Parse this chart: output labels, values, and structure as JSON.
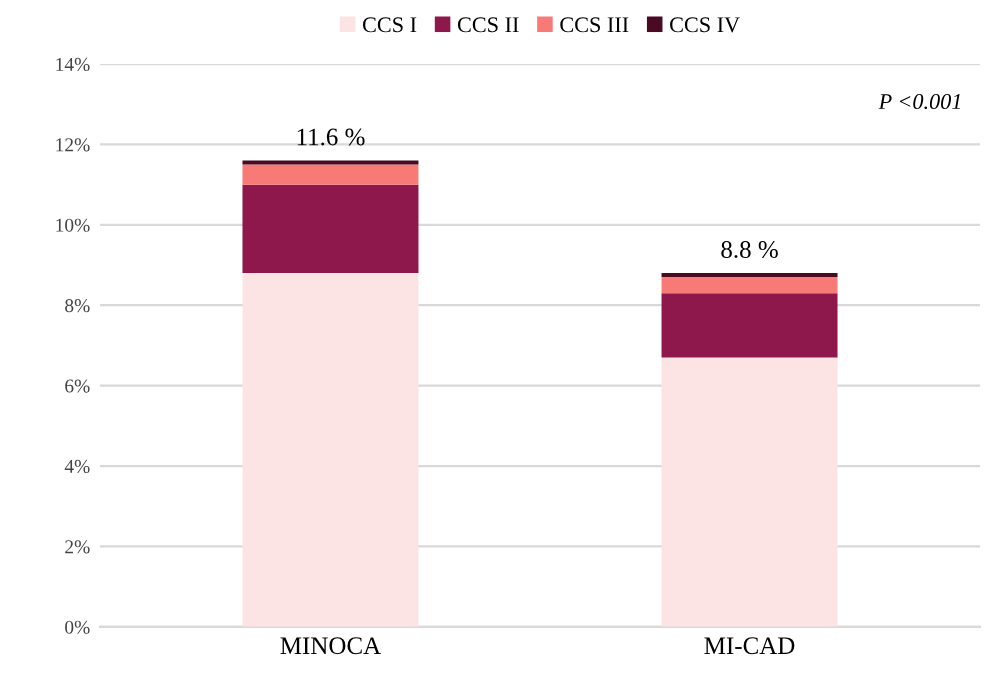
{
  "chart_data": {
    "type": "bar",
    "stacked": true,
    "categories": [
      "MINOCA",
      "MI-CAD"
    ],
    "series": [
      {
        "name": "CCS I",
        "color": "#fde4e4",
        "values": [
          8.8,
          6.7
        ]
      },
      {
        "name": "CCS II",
        "color": "#8e174b",
        "values": [
          2.2,
          1.6
        ]
      },
      {
        "name": "CCS III",
        "color": "#f87a76",
        "values": [
          0.5,
          0.4
        ]
      },
      {
        "name": "CCS IV",
        "color": "#4a0a22",
        "values": [
          0.1,
          0.1
        ]
      }
    ],
    "ylim": [
      0,
      14
    ],
    "yticks": [
      {
        "value": 0,
        "label": "0%"
      },
      {
        "value": 2,
        "label": "2%"
      },
      {
        "value": 4,
        "label": "4%"
      },
      {
        "value": 6,
        "label": "6%"
      },
      {
        "value": 8,
        "label": "8%"
      },
      {
        "value": 10,
        "label": "10%"
      },
      {
        "value": 12,
        "label": "12%"
      },
      {
        "value": 14,
        "label": "14%"
      }
    ],
    "totals": [
      "11.6 %",
      "8.8 %"
    ],
    "annotations": [
      "P <0.001"
    ],
    "grid": "y",
    "legend": "top"
  }
}
